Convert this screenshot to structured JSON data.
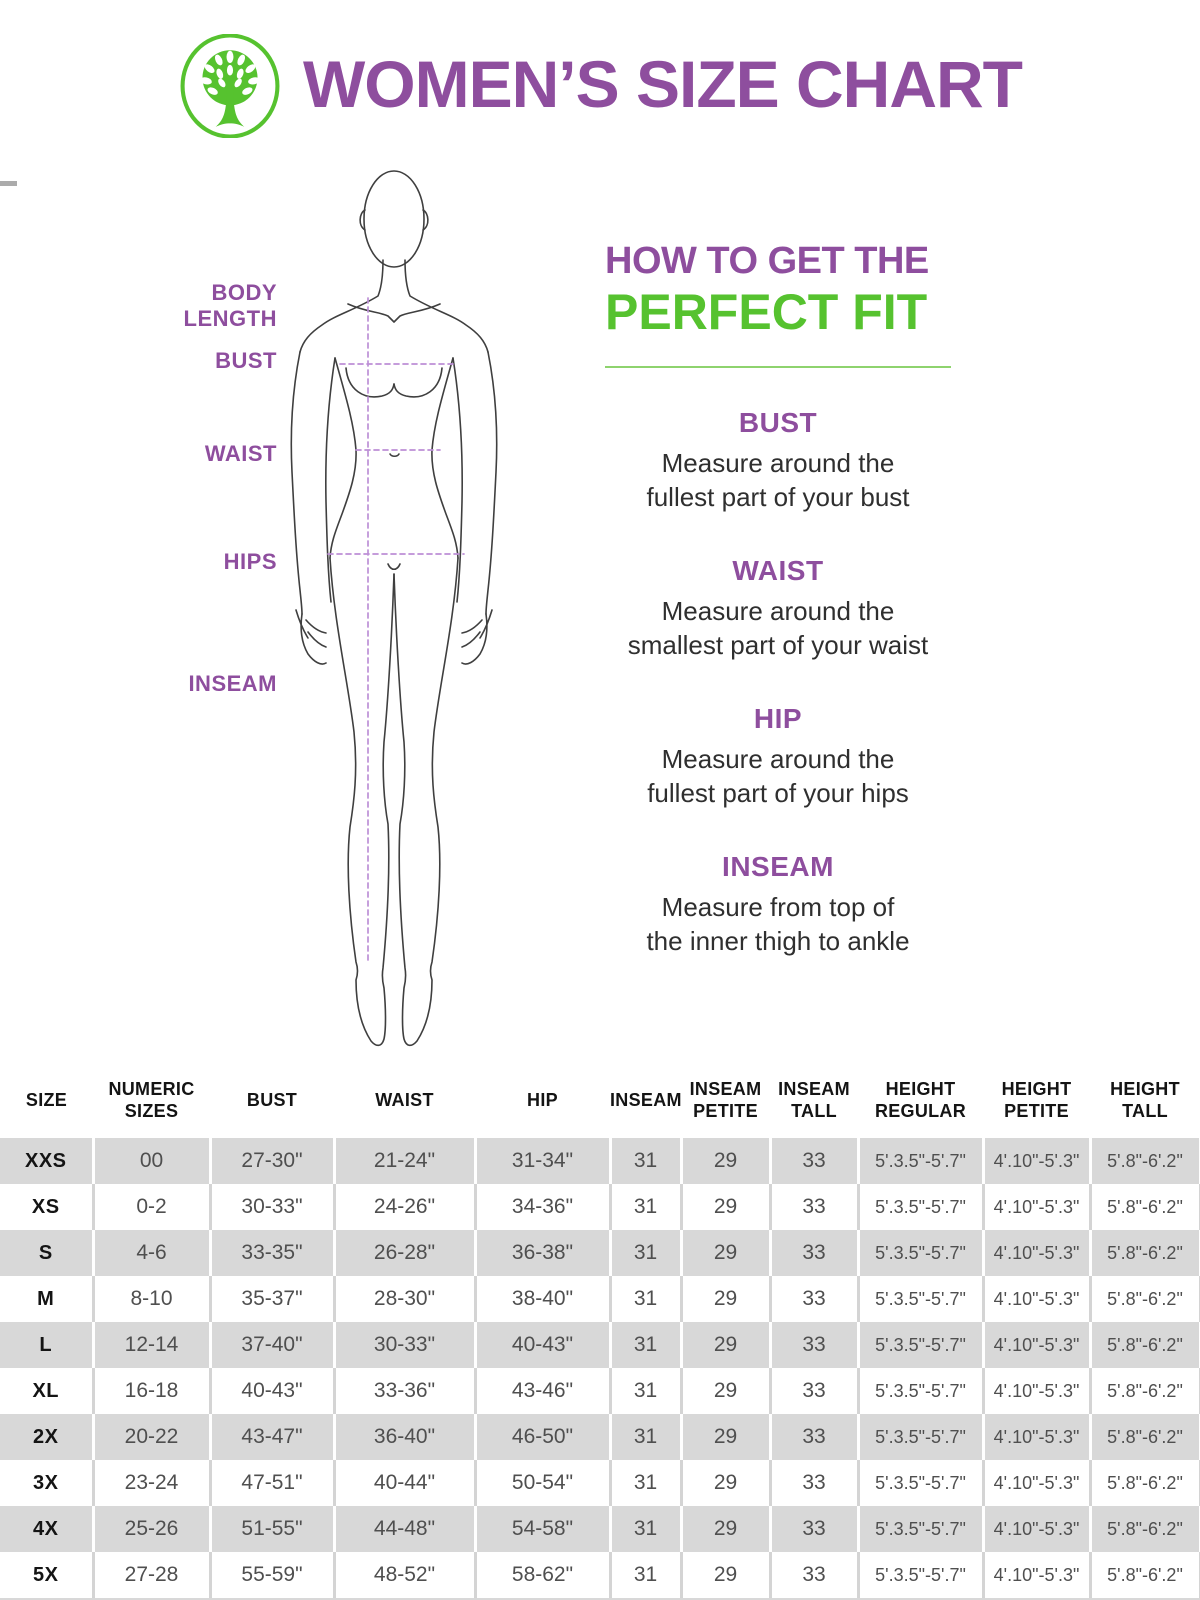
{
  "header": {
    "title": "WOMEN’S SIZE CHART",
    "logo": "tree-icon"
  },
  "figure": {
    "labels": {
      "body_length_line1": "BODY",
      "body_length_line2": "LENGTH",
      "bust": "BUST",
      "waist": "WAIST",
      "hips": "HIPS",
      "inseam": "INSEAM"
    }
  },
  "fit_guide": {
    "title_line1": "HOW TO GET THE",
    "title_line2": "PERFECT FIT",
    "sections": [
      {
        "heading": "BUST",
        "line1": "Measure around the",
        "line2": "fullest part of your bust"
      },
      {
        "heading": "WAIST",
        "line1": "Measure around the",
        "line2": "smallest part of your waist"
      },
      {
        "heading": "HIP",
        "line1": "Measure around the",
        "line2": "fullest part of your hips"
      },
      {
        "heading": "INSEAM",
        "line1": "Measure from top of",
        "line2": "the inner thigh to ankle"
      }
    ]
  },
  "table": {
    "columns": [
      [
        "SIZE"
      ],
      [
        "NUMERIC",
        "SIZES"
      ],
      [
        "BUST"
      ],
      [
        "WAIST"
      ],
      [
        "HIP"
      ],
      [
        "INSEAM"
      ],
      [
        "INSEAM",
        "PETITE"
      ],
      [
        "INSEAM",
        "TALL"
      ],
      [
        "HEIGHT",
        "REGULAR"
      ],
      [
        "HEIGHT",
        "PETITE"
      ],
      [
        "HEIGHT",
        "TALL"
      ]
    ],
    "rows": [
      [
        "XXS",
        "00",
        "27-30\"",
        "21-24\"",
        "31-34\"",
        "31",
        "29",
        "33",
        "5'.3.5\"-5'.7\"",
        "4'.10\"-5'.3\"",
        "5'.8\"-6'.2\""
      ],
      [
        "XS",
        "0-2",
        "30-33\"",
        "24-26\"",
        "34-36\"",
        "31",
        "29",
        "33",
        "5'.3.5\"-5'.7\"",
        "4'.10\"-5'.3\"",
        "5'.8\"-6'.2\""
      ],
      [
        "S",
        "4-6",
        "33-35\"",
        "26-28\"",
        "36-38\"",
        "31",
        "29",
        "33",
        "5'.3.5\"-5'.7\"",
        "4'.10\"-5'.3\"",
        "5'.8\"-6'.2\""
      ],
      [
        "M",
        "8-10",
        "35-37\"",
        "28-30\"",
        "38-40\"",
        "31",
        "29",
        "33",
        "5'.3.5\"-5'.7\"",
        "4'.10\"-5'.3\"",
        "5'.8\"-6'.2\""
      ],
      [
        "L",
        "12-14",
        "37-40\"",
        "30-33\"",
        "40-43\"",
        "31",
        "29",
        "33",
        "5'.3.5\"-5'.7\"",
        "4'.10\"-5'.3\"",
        "5'.8\"-6'.2\""
      ],
      [
        "XL",
        "16-18",
        "40-43\"",
        "33-36\"",
        "43-46\"",
        "31",
        "29",
        "33",
        "5'.3.5\"-5'.7\"",
        "4'.10\"-5'.3\"",
        "5'.8\"-6'.2\""
      ],
      [
        "2X",
        "20-22",
        "43-47\"",
        "36-40\"",
        "46-50\"",
        "31",
        "29",
        "33",
        "5'.3.5\"-5'.7\"",
        "4'.10\"-5'.3\"",
        "5'.8\"-6'.2\""
      ],
      [
        "3X",
        "23-24",
        "47-51\"",
        "40-44\"",
        "50-54\"",
        "31",
        "29",
        "33",
        "5'.3.5\"-5'.7\"",
        "4'.10\"-5'.3\"",
        "5'.8\"-6'.2\""
      ],
      [
        "4X",
        "25-26",
        "51-55\"",
        "44-48\"",
        "54-58\"",
        "31",
        "29",
        "33",
        "5'.3.5\"-5'.7\"",
        "4'.10\"-5'.3\"",
        "5'.8\"-6'.2\""
      ],
      [
        "5X",
        "27-28",
        "55-59\"",
        "48-52\"",
        "58-62\"",
        "31",
        "29",
        "33",
        "5'.3.5\"-5'.7\"",
        "4'.10\"-5'.3\"",
        "5'.8\"-6'.2\""
      ]
    ]
  },
  "colors": {
    "purple": "#8e4e9e",
    "green": "#56c22f",
    "light_green_line": "#8ed36e",
    "row_gray": "#d8d8d8",
    "text_dark": "#2f2f2f",
    "dashed_purple": "#bd8fd6"
  }
}
